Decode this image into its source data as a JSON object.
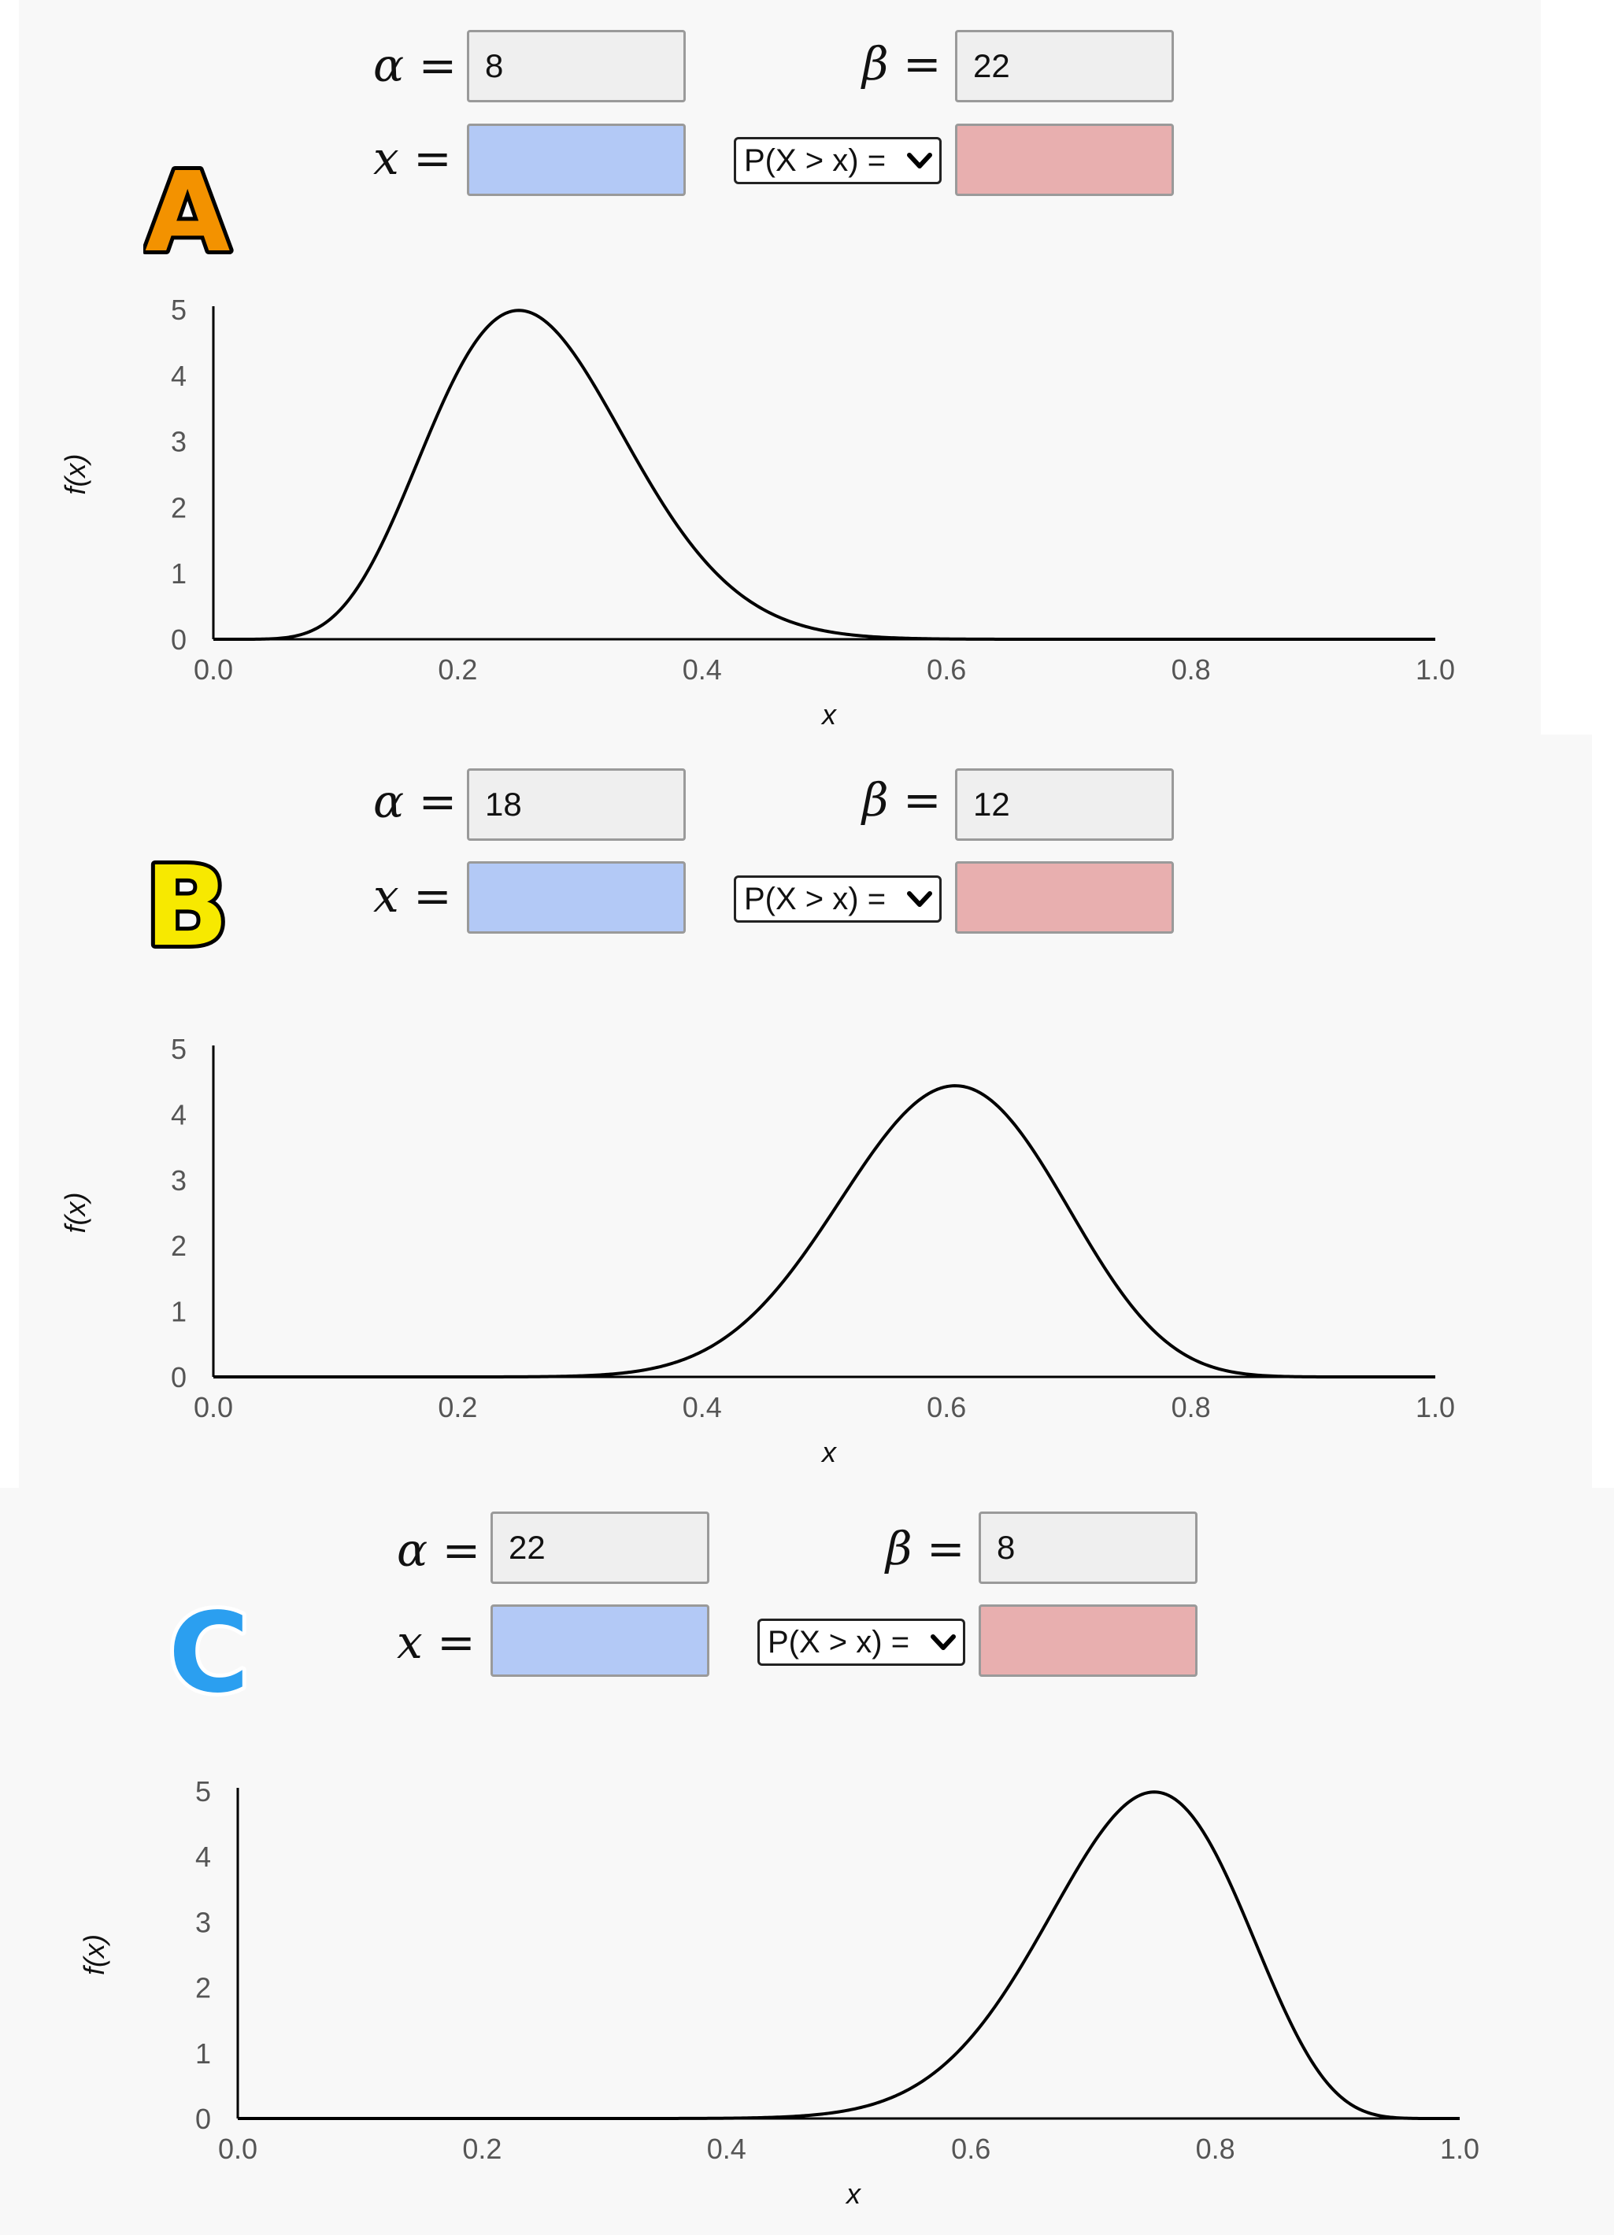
{
  "panels": [
    {
      "badge": "A",
      "badge_color": "#f39200",
      "alpha_symbol": "α",
      "beta_symbol": "β",
      "x_symbol": "x",
      "equals": "=",
      "alpha_value": "8",
      "beta_value": "22",
      "x_value": "",
      "p_value": "",
      "prob_select": "P(X > x) =",
      "field_colors": {
        "x": "#b3c9f6",
        "p": "#e8afaf"
      }
    },
    {
      "badge": "B",
      "badge_color": "#f7e900",
      "alpha_symbol": "α",
      "beta_symbol": "β",
      "x_symbol": "x",
      "equals": "=",
      "alpha_value": "18",
      "beta_value": "12",
      "x_value": "",
      "p_value": "",
      "prob_select": "P(X > x) =",
      "field_colors": {
        "x": "#b3c9f6",
        "p": "#e8afaf"
      }
    },
    {
      "badge": "C",
      "badge_color": "#2b9ff0",
      "alpha_symbol": "α",
      "beta_symbol": "β",
      "x_symbol": "x",
      "equals": "=",
      "alpha_value": "22",
      "beta_value": "8",
      "x_value": "",
      "p_value": "",
      "prob_select": "P(X > x) =",
      "field_colors": {
        "x": "#b3c9f6",
        "p": "#e8afaf"
      }
    }
  ],
  "chart_data": [
    {
      "type": "line",
      "distribution": "beta",
      "alpha": 8,
      "beta": 22,
      "xlabel": "x",
      "ylabel": "f(x)",
      "xlim": [
        0,
        1
      ],
      "ylim": [
        0,
        5
      ],
      "xticks": [
        "0.0",
        "0.2",
        "0.4",
        "0.6",
        "0.8",
        "1.0"
      ],
      "yticks": [
        "0",
        "1",
        "2",
        "3",
        "4",
        "5"
      ],
      "grid": false,
      "line_color": "#000000"
    },
    {
      "type": "line",
      "distribution": "beta",
      "alpha": 18,
      "beta": 12,
      "xlabel": "x",
      "ylabel": "f(x)",
      "xlim": [
        0,
        1
      ],
      "ylim": [
        0,
        5
      ],
      "xticks": [
        "0.0",
        "0.2",
        "0.4",
        "0.6",
        "0.8",
        "1.0"
      ],
      "yticks": [
        "0",
        "1",
        "2",
        "3",
        "4",
        "5"
      ],
      "grid": false,
      "line_color": "#000000"
    },
    {
      "type": "line",
      "distribution": "beta",
      "alpha": 22,
      "beta": 8,
      "xlabel": "x",
      "ylabel": "f(x)",
      "xlim": [
        0,
        1
      ],
      "ylim": [
        0,
        5
      ],
      "xticks": [
        "0.0",
        "0.2",
        "0.4",
        "0.6",
        "0.8",
        "1.0"
      ],
      "yticks": [
        "0",
        "1",
        "2",
        "3",
        "4",
        "5"
      ],
      "grid": false,
      "line_color": "#000000"
    }
  ]
}
